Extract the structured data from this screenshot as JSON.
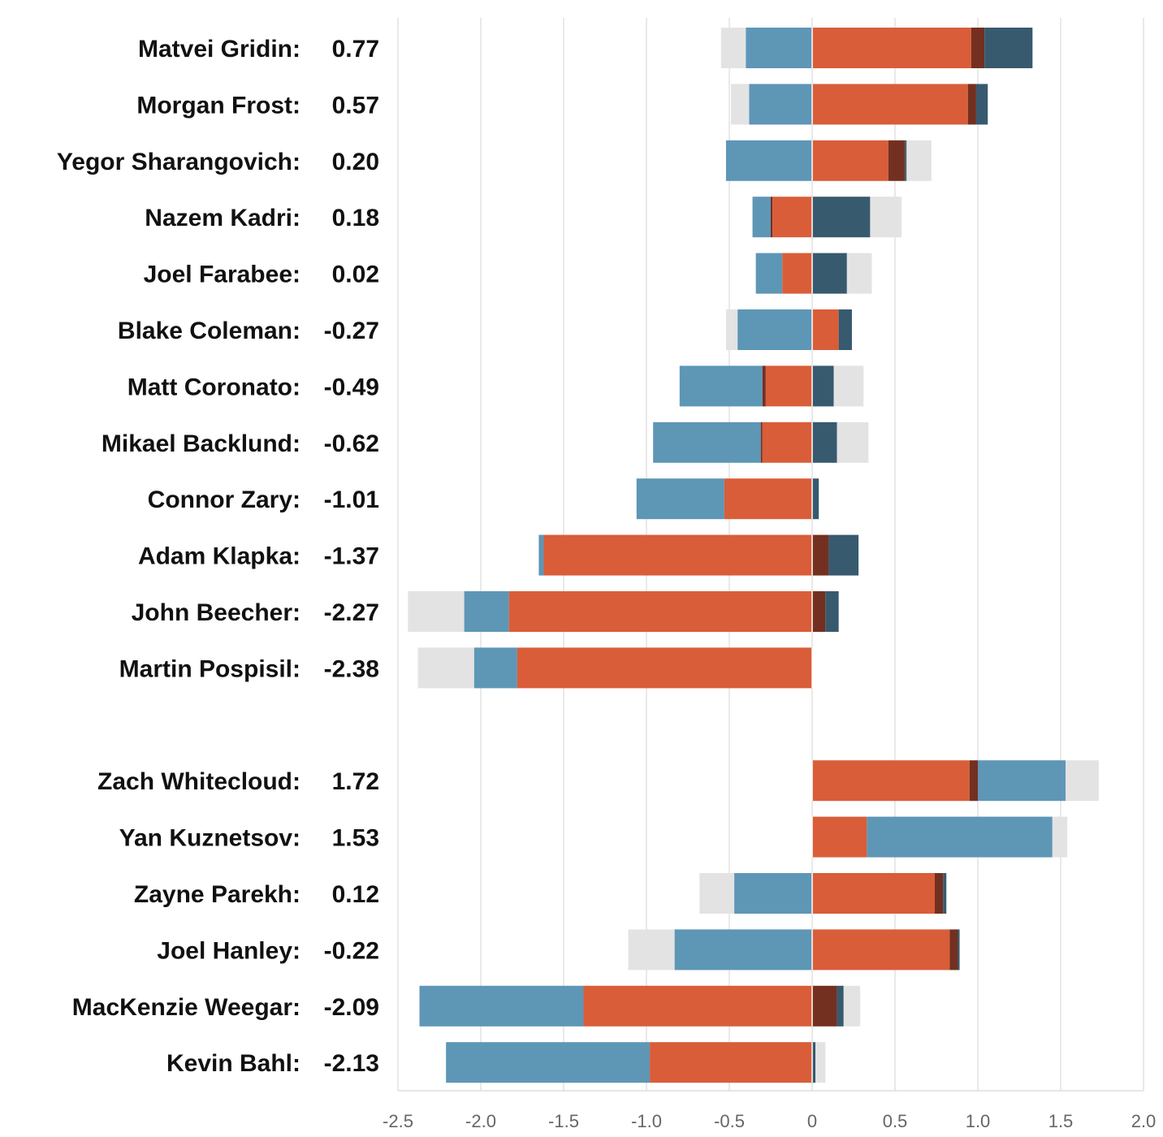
{
  "chart_data": {
    "type": "bar",
    "orientation": "horizontal",
    "stacked": "diverging",
    "title": "",
    "xlabel": "",
    "ylabel": "",
    "xlim": [
      -2.5,
      2.0
    ],
    "x_ticks": [
      -2.5,
      -2.0,
      -1.5,
      -1.0,
      -0.5,
      0,
      0.5,
      1.0,
      1.5,
      2.0
    ],
    "x_tick_labels": [
      "-2.5",
      "-2.0",
      "-1.5",
      "-1.0",
      "-0.5",
      "0",
      "0.5",
      "1.0",
      "1.5",
      "2.0"
    ],
    "grid": true,
    "legend": "none",
    "colors": {
      "light": "#e3e3e3",
      "blue": "#5e96b6",
      "orange": "#d95d39",
      "maroon": "#733020",
      "navy": "#375a6f"
    },
    "groups": [
      {
        "players": [
          {
            "name": "Matvei Gridin:",
            "total": "0.77",
            "segments": [
              {
                "from": -0.55,
                "to": -0.4,
                "color": "light"
              },
              {
                "from": -0.4,
                "to": 0,
                "color": "blue"
              },
              {
                "from": 0,
                "to": 0.96,
                "color": "orange"
              },
              {
                "from": 0.96,
                "to": 1.04,
                "color": "maroon"
              },
              {
                "from": 1.04,
                "to": 1.33,
                "color": "navy"
              }
            ]
          },
          {
            "name": "Morgan Frost:",
            "total": "0.57",
            "segments": [
              {
                "from": -0.49,
                "to": -0.38,
                "color": "light"
              },
              {
                "from": -0.38,
                "to": 0,
                "color": "blue"
              },
              {
                "from": 0,
                "to": 0.94,
                "color": "orange"
              },
              {
                "from": 0.94,
                "to": 0.99,
                "color": "maroon"
              },
              {
                "from": 0.99,
                "to": 1.06,
                "color": "navy"
              }
            ]
          },
          {
            "name": "Yegor Sharangovich:",
            "total": "0.20",
            "segments": [
              {
                "from": -0.52,
                "to": 0,
                "color": "blue"
              },
              {
                "from": 0,
                "to": 0.46,
                "color": "orange"
              },
              {
                "from": 0.46,
                "to": 0.56,
                "color": "maroon"
              },
              {
                "from": 0.56,
                "to": 0.57,
                "color": "navy"
              },
              {
                "from": 0.57,
                "to": 0.72,
                "color": "light"
              }
            ]
          },
          {
            "name": "Nazem Kadri:",
            "total": "0.18",
            "segments": [
              {
                "from": -0.36,
                "to": -0.25,
                "color": "blue"
              },
              {
                "from": -0.25,
                "to": -0.24,
                "color": "maroon"
              },
              {
                "from": -0.24,
                "to": 0,
                "color": "orange"
              },
              {
                "from": 0,
                "to": 0.35,
                "color": "navy"
              },
              {
                "from": 0.35,
                "to": 0.54,
                "color": "light"
              }
            ]
          },
          {
            "name": "Joel Farabee:",
            "total": "0.02",
            "segments": [
              {
                "from": -0.34,
                "to": -0.18,
                "color": "blue"
              },
              {
                "from": -0.18,
                "to": 0,
                "color": "orange"
              },
              {
                "from": 0,
                "to": 0.21,
                "color": "navy"
              },
              {
                "from": 0.21,
                "to": 0.36,
                "color": "light"
              }
            ]
          },
          {
            "name": "Blake Coleman:",
            "total": "-0.27",
            "segments": [
              {
                "from": -0.52,
                "to": -0.45,
                "color": "light"
              },
              {
                "from": -0.45,
                "to": 0,
                "color": "blue"
              },
              {
                "from": 0,
                "to": 0.16,
                "color": "orange"
              },
              {
                "from": 0.16,
                "to": 0.24,
                "color": "navy"
              }
            ]
          },
          {
            "name": "Matt Coronato:",
            "total": "-0.49",
            "segments": [
              {
                "from": -0.8,
                "to": -0.3,
                "color": "blue"
              },
              {
                "from": -0.3,
                "to": -0.28,
                "color": "maroon"
              },
              {
                "from": -0.28,
                "to": 0,
                "color": "orange"
              },
              {
                "from": 0,
                "to": 0.13,
                "color": "navy"
              },
              {
                "from": 0.13,
                "to": 0.31,
                "color": "light"
              }
            ]
          },
          {
            "name": "Mikael Backlund:",
            "total": "-0.62",
            "segments": [
              {
                "from": -0.96,
                "to": -0.31,
                "color": "blue"
              },
              {
                "from": -0.31,
                "to": -0.3,
                "color": "maroon"
              },
              {
                "from": -0.3,
                "to": 0,
                "color": "orange"
              },
              {
                "from": 0,
                "to": 0.15,
                "color": "navy"
              },
              {
                "from": 0.15,
                "to": 0.34,
                "color": "light"
              }
            ]
          },
          {
            "name": "Connor Zary:",
            "total": "-1.01",
            "segments": [
              {
                "from": -1.06,
                "to": -0.53,
                "color": "blue"
              },
              {
                "from": -0.53,
                "to": 0,
                "color": "orange"
              },
              {
                "from": 0,
                "to": 0.04,
                "color": "navy"
              }
            ]
          },
          {
            "name": "Adam Klapka:",
            "total": "-1.37",
            "segments": [
              {
                "from": -1.65,
                "to": -1.62,
                "color": "blue"
              },
              {
                "from": -1.62,
                "to": 0,
                "color": "orange"
              },
              {
                "from": 0,
                "to": 0.1,
                "color": "maroon"
              },
              {
                "from": 0.1,
                "to": 0.28,
                "color": "navy"
              }
            ]
          },
          {
            "name": "John Beecher:",
            "total": "-2.27",
            "segments": [
              {
                "from": -2.44,
                "to": -2.1,
                "color": "light"
              },
              {
                "from": -2.1,
                "to": -1.83,
                "color": "blue"
              },
              {
                "from": -1.83,
                "to": 0,
                "color": "orange"
              },
              {
                "from": 0,
                "to": 0.08,
                "color": "maroon"
              },
              {
                "from": 0.08,
                "to": 0.16,
                "color": "navy"
              }
            ]
          },
          {
            "name": "Martin Pospisil:",
            "total": "-2.38",
            "segments": [
              {
                "from": -2.38,
                "to": -2.04,
                "color": "light"
              },
              {
                "from": -2.04,
                "to": -1.78,
                "color": "blue"
              },
              {
                "from": -1.78,
                "to": 0,
                "color": "orange"
              }
            ]
          }
        ]
      },
      {
        "players": [
          {
            "name": "Zach Whitecloud:",
            "total": "1.72",
            "segments": [
              {
                "from": 0,
                "to": 0.95,
                "color": "orange"
              },
              {
                "from": 0.95,
                "to": 1.0,
                "color": "maroon"
              },
              {
                "from": 1.0,
                "to": 1.53,
                "color": "blue"
              },
              {
                "from": 1.53,
                "to": 1.73,
                "color": "light"
              }
            ]
          },
          {
            "name": "Yan Kuznetsov:",
            "total": "1.53",
            "segments": [
              {
                "from": 0,
                "to": 0.33,
                "color": "orange"
              },
              {
                "from": 0.33,
                "to": 1.45,
                "color": "blue"
              },
              {
                "from": 1.45,
                "to": 1.54,
                "color": "light"
              }
            ]
          },
          {
            "name": "Zayne Parekh:",
            "total": "0.12",
            "segments": [
              {
                "from": -0.68,
                "to": -0.47,
                "color": "light"
              },
              {
                "from": -0.47,
                "to": 0,
                "color": "blue"
              },
              {
                "from": 0,
                "to": 0.74,
                "color": "orange"
              },
              {
                "from": 0.74,
                "to": 0.79,
                "color": "maroon"
              },
              {
                "from": 0.79,
                "to": 0.81,
                "color": "navy"
              }
            ]
          },
          {
            "name": "Joel Hanley:",
            "total": "-0.22",
            "segments": [
              {
                "from": -1.11,
                "to": -0.83,
                "color": "light"
              },
              {
                "from": -0.83,
                "to": 0,
                "color": "blue"
              },
              {
                "from": 0,
                "to": 0.83,
                "color": "orange"
              },
              {
                "from": 0.83,
                "to": 0.88,
                "color": "maroon"
              },
              {
                "from": 0.88,
                "to": 0.89,
                "color": "navy"
              }
            ]
          },
          {
            "name": "MacKenzie Weegar:",
            "total": "-2.09",
            "segments": [
              {
                "from": -2.37,
                "to": -1.38,
                "color": "blue"
              },
              {
                "from": -1.38,
                "to": 0,
                "color": "orange"
              },
              {
                "from": 0,
                "to": 0.15,
                "color": "maroon"
              },
              {
                "from": 0.15,
                "to": 0.19,
                "color": "navy"
              },
              {
                "from": 0.19,
                "to": 0.29,
                "color": "light"
              }
            ]
          },
          {
            "name": "Kevin Bahl:",
            "total": "-2.13",
            "segments": [
              {
                "from": -2.21,
                "to": -0.98,
                "color": "blue"
              },
              {
                "from": -0.98,
                "to": 0,
                "color": "orange"
              },
              {
                "from": 0,
                "to": 0.02,
                "color": "navy"
              },
              {
                "from": 0.02,
                "to": 0.08,
                "color": "light"
              }
            ]
          }
        ]
      }
    ]
  }
}
